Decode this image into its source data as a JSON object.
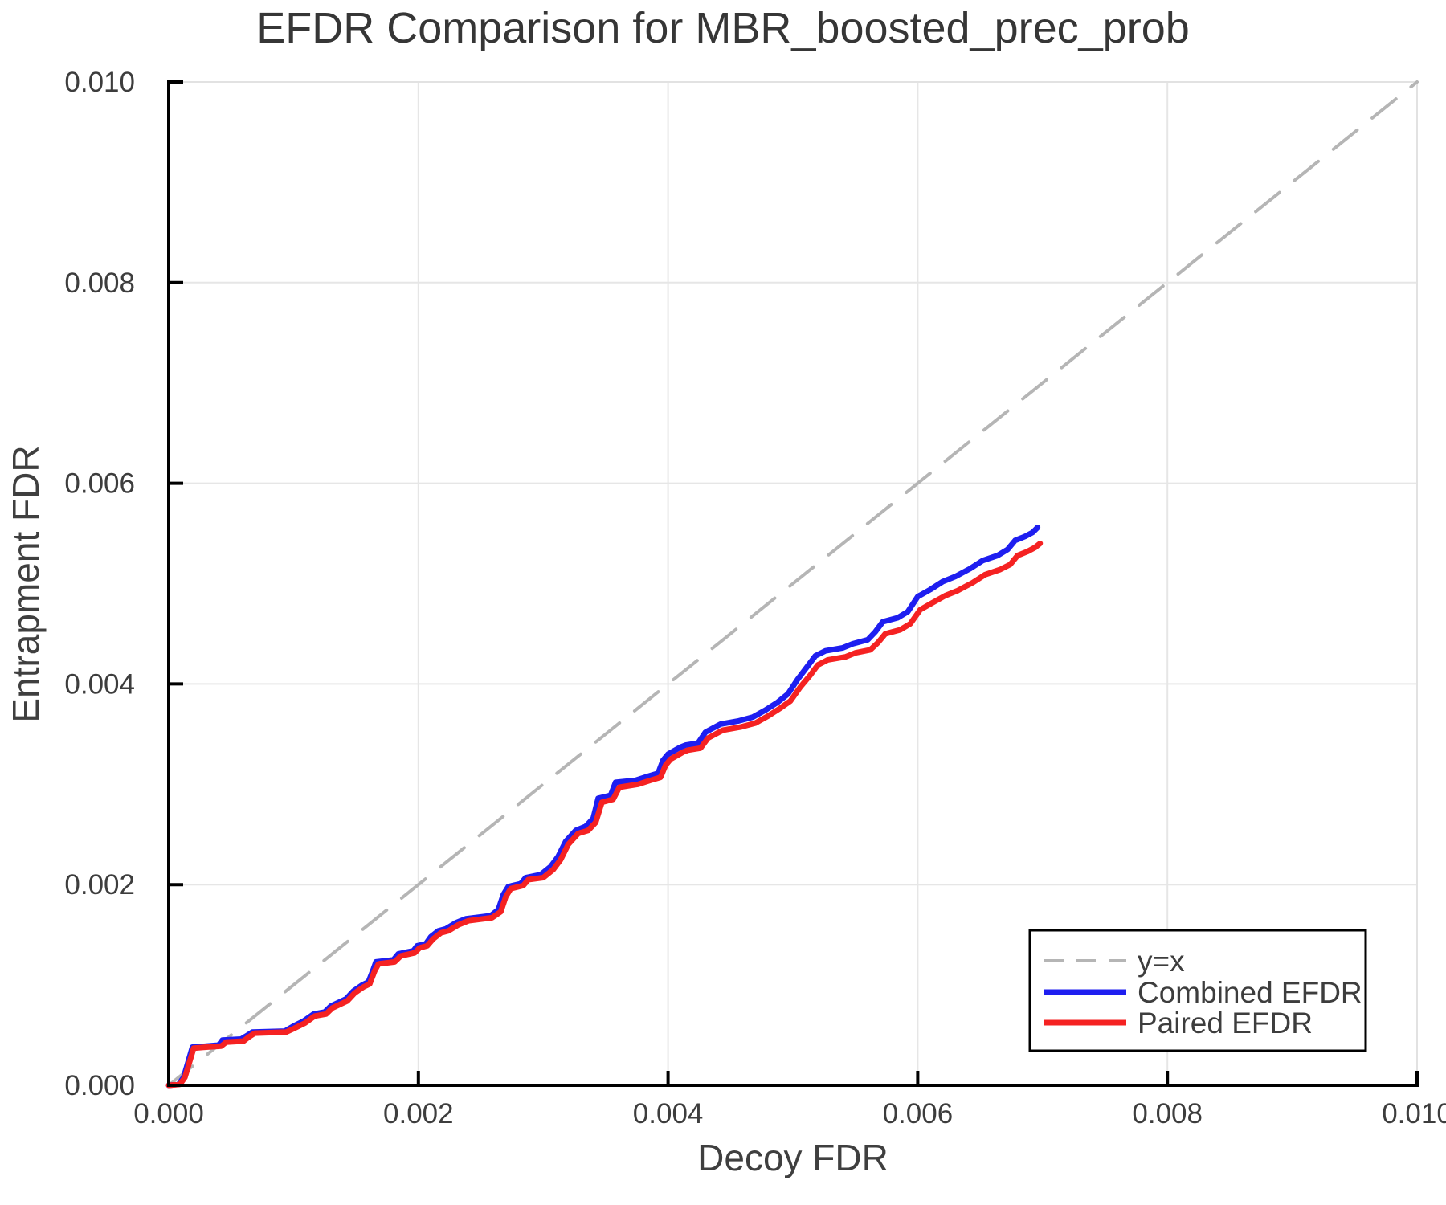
{
  "chart_data": {
    "type": "line",
    "title": "EFDR Comparison for MBR_boosted_prec_prob",
    "xlabel": "Decoy FDR",
    "ylabel": "Entrapment FDR",
    "xlim": [
      0.0,
      0.01
    ],
    "ylim": [
      0.0,
      0.01
    ],
    "xticks": [
      "0.000",
      "0.002",
      "0.004",
      "0.006",
      "0.008",
      "0.010"
    ],
    "xtick_values": [
      0.0,
      0.002,
      0.004,
      0.006,
      0.008,
      0.01
    ],
    "yticks": [
      "0.000",
      "0.002",
      "0.004",
      "0.006",
      "0.008",
      "0.010"
    ],
    "ytick_values": [
      0.0,
      0.002,
      0.004,
      0.006,
      0.008,
      0.01
    ],
    "grid": true,
    "legend_position": "bottom-right",
    "colors": {
      "grid": "#e6e6e6",
      "frame": "#e2e2e2",
      "spine": "#000000",
      "text": "#3d3d3d",
      "title": "#363636",
      "reference": "#b5b5b5",
      "combined": "#1e1ef0",
      "paired": "#f52222"
    },
    "series": [
      {
        "name": "y=x",
        "style": "dashed",
        "color": "#b5b5b5",
        "points": [
          [
            0.0,
            0.0
          ],
          [
            0.01,
            0.01
          ]
        ]
      },
      {
        "name": "Combined EFDR",
        "style": "solid",
        "color": "#1e1ef0",
        "points": [
          [
            0.0,
            0.0
          ],
          [
            8e-05,
            1e-05
          ],
          [
            0.00012,
            8e-05
          ],
          [
            0.00019,
            0.00038
          ],
          [
            0.0003,
            0.00039
          ],
          [
            0.0004,
            0.0004
          ],
          [
            0.00043,
            0.00045
          ],
          [
            0.00058,
            0.00046
          ],
          [
            0.00062,
            0.00049
          ],
          [
            0.00067,
            0.00053
          ],
          [
            0.00093,
            0.00054
          ],
          [
            0.001,
            0.00059
          ],
          [
            0.00108,
            0.00064
          ],
          [
            0.00116,
            0.00071
          ],
          [
            0.00125,
            0.00073
          ],
          [
            0.0013,
            0.00079
          ],
          [
            0.00142,
            0.00086
          ],
          [
            0.00148,
            0.00094
          ],
          [
            0.00155,
            0.001
          ],
          [
            0.0016,
            0.00103
          ],
          [
            0.00164,
            0.00116
          ],
          [
            0.00166,
            0.00123
          ],
          [
            0.0018,
            0.00125
          ],
          [
            0.00184,
            0.00131
          ],
          [
            0.00196,
            0.00134
          ],
          [
            0.00199,
            0.00139
          ],
          [
            0.00206,
            0.00141
          ],
          [
            0.0021,
            0.00148
          ],
          [
            0.00216,
            0.00154
          ],
          [
            0.00222,
            0.00156
          ],
          [
            0.0023,
            0.00162
          ],
          [
            0.00238,
            0.00166
          ],
          [
            0.00258,
            0.00169
          ],
          [
            0.00264,
            0.00175
          ],
          [
            0.00268,
            0.0019
          ],
          [
            0.00272,
            0.00198
          ],
          [
            0.00282,
            0.00201
          ],
          [
            0.00286,
            0.00207
          ],
          [
            0.00298,
            0.0021
          ],
          [
            0.00306,
            0.00218
          ],
          [
            0.00312,
            0.00228
          ],
          [
            0.00318,
            0.00243
          ],
          [
            0.00326,
            0.00254
          ],
          [
            0.00334,
            0.00258
          ],
          [
            0.0034,
            0.00266
          ],
          [
            0.00344,
            0.00286
          ],
          [
            0.00354,
            0.00289
          ],
          [
            0.00358,
            0.00302
          ],
          [
            0.00374,
            0.00304
          ],
          [
            0.00384,
            0.00308
          ],
          [
            0.00392,
            0.00311
          ],
          [
            0.00396,
            0.00324
          ],
          [
            0.004,
            0.0033
          ],
          [
            0.0041,
            0.00337
          ],
          [
            0.00414,
            0.00339
          ],
          [
            0.00424,
            0.00341
          ],
          [
            0.0043,
            0.00352
          ],
          [
            0.00442,
            0.0036
          ],
          [
            0.00456,
            0.00363
          ],
          [
            0.00468,
            0.00367
          ],
          [
            0.00478,
            0.00374
          ],
          [
            0.00488,
            0.00382
          ],
          [
            0.00496,
            0.0039
          ],
          [
            0.00504,
            0.00405
          ],
          [
            0.00512,
            0.00418
          ],
          [
            0.00518,
            0.00428
          ],
          [
            0.00526,
            0.00433
          ],
          [
            0.0054,
            0.00436
          ],
          [
            0.00548,
            0.0044
          ],
          [
            0.0056,
            0.00444
          ],
          [
            0.00566,
            0.00452
          ],
          [
            0.00572,
            0.00462
          ],
          [
            0.00584,
            0.00466
          ],
          [
            0.00592,
            0.00472
          ],
          [
            0.006,
            0.00487
          ],
          [
            0.0061,
            0.00494
          ],
          [
            0.0062,
            0.00502
          ],
          [
            0.0063,
            0.00507
          ],
          [
            0.00642,
            0.00515
          ],
          [
            0.00652,
            0.00523
          ],
          [
            0.00664,
            0.00528
          ],
          [
            0.00672,
            0.00534
          ],
          [
            0.00678,
            0.00543
          ],
          [
            0.00686,
            0.00547
          ],
          [
            0.00692,
            0.00551
          ],
          [
            0.00696,
            0.00556
          ]
        ]
      },
      {
        "name": "Paired EFDR",
        "style": "solid",
        "color": "#f52222",
        "points": [
          [
            0.0,
            0.0
          ],
          [
            9e-05,
            1e-05
          ],
          [
            0.00013,
            8e-05
          ],
          [
            0.0002,
            0.00037
          ],
          [
            0.0003,
            0.00038
          ],
          [
            0.00042,
            0.00039
          ],
          [
            0.00046,
            0.00043
          ],
          [
            0.0006,
            0.00044
          ],
          [
            0.00064,
            0.00048
          ],
          [
            0.00069,
            0.00052
          ],
          [
            0.00094,
            0.00053
          ],
          [
            0.00101,
            0.00057
          ],
          [
            0.00109,
            0.00062
          ],
          [
            0.00117,
            0.00069
          ],
          [
            0.00126,
            0.00071
          ],
          [
            0.00131,
            0.00077
          ],
          [
            0.00143,
            0.00084
          ],
          [
            0.00149,
            0.00092
          ],
          [
            0.00156,
            0.00098
          ],
          [
            0.00161,
            0.00101
          ],
          [
            0.00165,
            0.00114
          ],
          [
            0.00168,
            0.00121
          ],
          [
            0.00181,
            0.00123
          ],
          [
            0.00186,
            0.00129
          ],
          [
            0.00197,
            0.00132
          ],
          [
            0.00201,
            0.00137
          ],
          [
            0.00207,
            0.00139
          ],
          [
            0.00212,
            0.00146
          ],
          [
            0.00218,
            0.00152
          ],
          [
            0.00224,
            0.00154
          ],
          [
            0.00232,
            0.0016
          ],
          [
            0.0024,
            0.00164
          ],
          [
            0.00259,
            0.00167
          ],
          [
            0.00266,
            0.00173
          ],
          [
            0.0027,
            0.00188
          ],
          [
            0.00274,
            0.00196
          ],
          [
            0.00284,
            0.00199
          ],
          [
            0.00288,
            0.00205
          ],
          [
            0.003,
            0.00207
          ],
          [
            0.00308,
            0.00215
          ],
          [
            0.00314,
            0.00225
          ],
          [
            0.0032,
            0.0024
          ],
          [
            0.00328,
            0.00251
          ],
          [
            0.00336,
            0.00254
          ],
          [
            0.00342,
            0.00262
          ],
          [
            0.00347,
            0.00282
          ],
          [
            0.00356,
            0.00285
          ],
          [
            0.00361,
            0.00297
          ],
          [
            0.00376,
            0.003
          ],
          [
            0.00386,
            0.00304
          ],
          [
            0.00394,
            0.00307
          ],
          [
            0.00398,
            0.00319
          ],
          [
            0.00402,
            0.00325
          ],
          [
            0.00412,
            0.00332
          ],
          [
            0.00416,
            0.00334
          ],
          [
            0.00426,
            0.00336
          ],
          [
            0.00432,
            0.00346
          ],
          [
            0.00444,
            0.00354
          ],
          [
            0.00458,
            0.00357
          ],
          [
            0.0047,
            0.00361
          ],
          [
            0.0048,
            0.00368
          ],
          [
            0.0049,
            0.00376
          ],
          [
            0.00498,
            0.00383
          ],
          [
            0.00506,
            0.00397
          ],
          [
            0.00514,
            0.00409
          ],
          [
            0.0052,
            0.00419
          ],
          [
            0.00528,
            0.00424
          ],
          [
            0.00542,
            0.00427
          ],
          [
            0.0055,
            0.00431
          ],
          [
            0.00562,
            0.00434
          ],
          [
            0.00568,
            0.00441
          ],
          [
            0.00574,
            0.0045
          ],
          [
            0.00586,
            0.00454
          ],
          [
            0.00594,
            0.0046
          ],
          [
            0.00602,
            0.00474
          ],
          [
            0.00612,
            0.00481
          ],
          [
            0.00622,
            0.00488
          ],
          [
            0.00632,
            0.00493
          ],
          [
            0.00644,
            0.00501
          ],
          [
            0.00654,
            0.00509
          ],
          [
            0.00666,
            0.00514
          ],
          [
            0.00674,
            0.00519
          ],
          [
            0.0068,
            0.00528
          ],
          [
            0.00688,
            0.00532
          ],
          [
            0.00694,
            0.00536
          ],
          [
            0.00698,
            0.0054
          ]
        ]
      }
    ]
  }
}
